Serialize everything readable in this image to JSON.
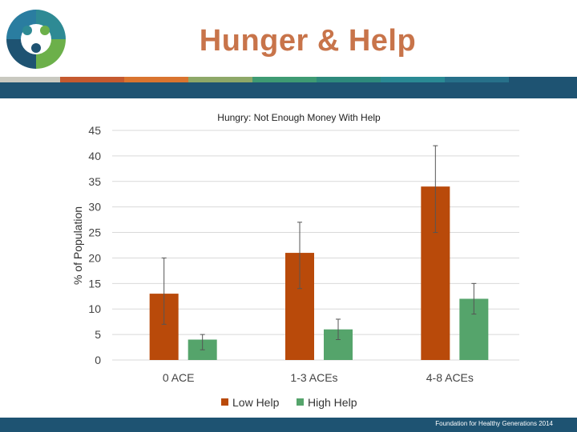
{
  "slide": {
    "title": "Hunger & Help",
    "footer": "Foundation for Healthy Generations 2014"
  },
  "colors": {
    "title": "#c8744a",
    "band": "#1e5372",
    "stripe": [
      "#c9c9c0",
      "#c55a2f",
      "#d9742f",
      "#8ea868",
      "#3f9b73",
      "#2e8a7c",
      "#2a8a94",
      "#27708a",
      "#1e5372"
    ]
  },
  "chart_data": {
    "type": "bar",
    "title": "Hungry: Not Enough Money With Help",
    "ylabel": "% of Population",
    "xlabel": "",
    "ylim": [
      0,
      45
    ],
    "yticks": [
      0,
      5,
      10,
      15,
      20,
      25,
      30,
      35,
      40,
      45
    ],
    "categories": [
      "0 ACE",
      "1-3 ACEs",
      "4-8 ACEs"
    ],
    "series": [
      {
        "name": "Low Help",
        "color": "#b94a0a",
        "values": [
          13,
          21,
          34
        ],
        "error_low": [
          7,
          14,
          25
        ],
        "error_high": [
          20,
          27,
          42
        ]
      },
      {
        "name": "High Help",
        "color": "#55a46b",
        "values": [
          4,
          6,
          12
        ],
        "error_low": [
          2,
          4,
          9
        ],
        "error_high": [
          5,
          8,
          15
        ]
      }
    ],
    "grid": true,
    "legend": "bottom"
  }
}
